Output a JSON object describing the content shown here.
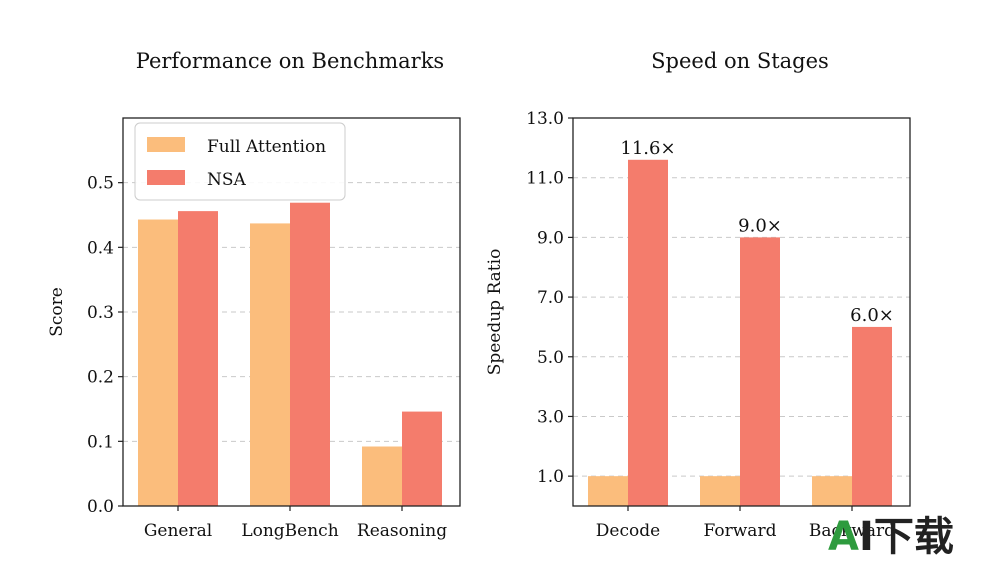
{
  "colors": {
    "full_attention": "#fbbd7c",
    "nsa": "#f47c6c",
    "grid": "#c9c9c9",
    "axis": "#222222"
  },
  "watermark": {
    "first": "A",
    "rest": "I下载"
  },
  "chart_data": [
    {
      "type": "bar",
      "title": "Performance on Benchmarks",
      "xlabel": "",
      "ylabel": "Score",
      "ylim": [
        0,
        0.6
      ],
      "yticks": [
        0.0,
        0.1,
        0.2,
        0.3,
        0.4,
        0.5
      ],
      "ytick_labels": [
        "0.0",
        "0.1",
        "0.2",
        "0.3",
        "0.4",
        "0.5"
      ],
      "grid": true,
      "legend": "top-left",
      "categories": [
        "General",
        "LongBench",
        "Reasoning"
      ],
      "series": [
        {
          "name": "Full Attention",
          "color_key": "full_attention",
          "values": [
            0.443,
            0.437,
            0.092
          ]
        },
        {
          "name": "NSA",
          "color_key": "nsa",
          "values": [
            0.456,
            0.469,
            0.146
          ]
        }
      ]
    },
    {
      "type": "bar",
      "title": "Speed on Stages",
      "xlabel": "",
      "ylabel": "Speedup Ratio",
      "ylim": [
        0,
        13.0
      ],
      "yticks": [
        1.0,
        3.0,
        5.0,
        7.0,
        9.0,
        11.0,
        13.0
      ],
      "ytick_labels": [
        "1.0",
        "3.0",
        "5.0",
        "7.0",
        "9.0",
        "11.0",
        "13.0"
      ],
      "grid": true,
      "categories": [
        "Decode",
        "Forward",
        "Backward"
      ],
      "series": [
        {
          "color_key": "full_attention",
          "values": [
            1.0,
            1.0,
            1.0
          ]
        },
        {
          "color_key": "nsa",
          "values": [
            11.6,
            9.0,
            6.0
          ],
          "labels": [
            "11.6×",
            "9.0×",
            "6.0×"
          ]
        }
      ]
    }
  ]
}
